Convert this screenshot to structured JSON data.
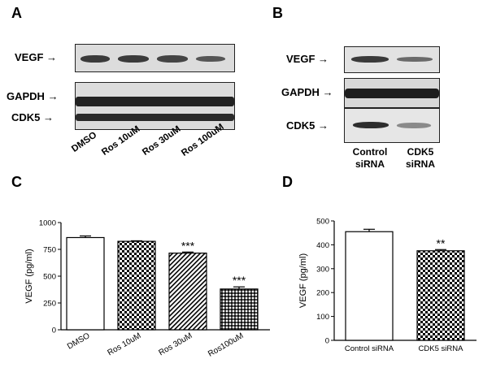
{
  "panels": {
    "A": "A",
    "B": "B",
    "C": "C",
    "D": "D"
  },
  "blot_a": {
    "row_labels": {
      "vegf": "VEGF",
      "gapdh": "GAPDH",
      "cdk5": "CDK5"
    },
    "lanes": [
      "DMSO",
      "Ros 10uM",
      "Ros 30uM",
      "Ros 100uM"
    ]
  },
  "blot_b": {
    "row_labels": {
      "vegf": "VEGF",
      "gapdh": "GAPDH",
      "cdk5": "CDK5"
    },
    "lanes": [
      {
        "line1": "Control",
        "line2": "siRNA"
      },
      {
        "line1": "CDK5",
        "line2": "siRNA"
      }
    ]
  },
  "chart_data": [
    {
      "type": "bar",
      "panel": "C",
      "categories": [
        "DMSO",
        "Ros 10uM",
        "Ros 30uM",
        "Ros100uM"
      ],
      "values": [
        860,
        825,
        715,
        380
      ],
      "errors": [
        15,
        5,
        10,
        20
      ],
      "significance": [
        "",
        "",
        "***",
        "***"
      ],
      "patterns": [
        "white",
        "checker",
        "diagonal",
        "dense-checker"
      ],
      "ylabel": "VEGF (pg/ml)",
      "ylim": [
        0,
        1000
      ],
      "yticks": [
        0,
        250,
        500,
        750,
        1000
      ]
    },
    {
      "type": "bar",
      "panel": "D",
      "categories": [
        "Control siRNA",
        "CDK5 siRNA"
      ],
      "values": [
        455,
        375
      ],
      "errors": [
        10,
        5
      ],
      "significance": [
        "",
        "**"
      ],
      "patterns": [
        "white",
        "checker"
      ],
      "ylabel": "VEGF (pg/ml)",
      "ylim": [
        0,
        500
      ],
      "yticks": [
        0,
        100,
        200,
        300,
        400,
        500
      ]
    }
  ]
}
